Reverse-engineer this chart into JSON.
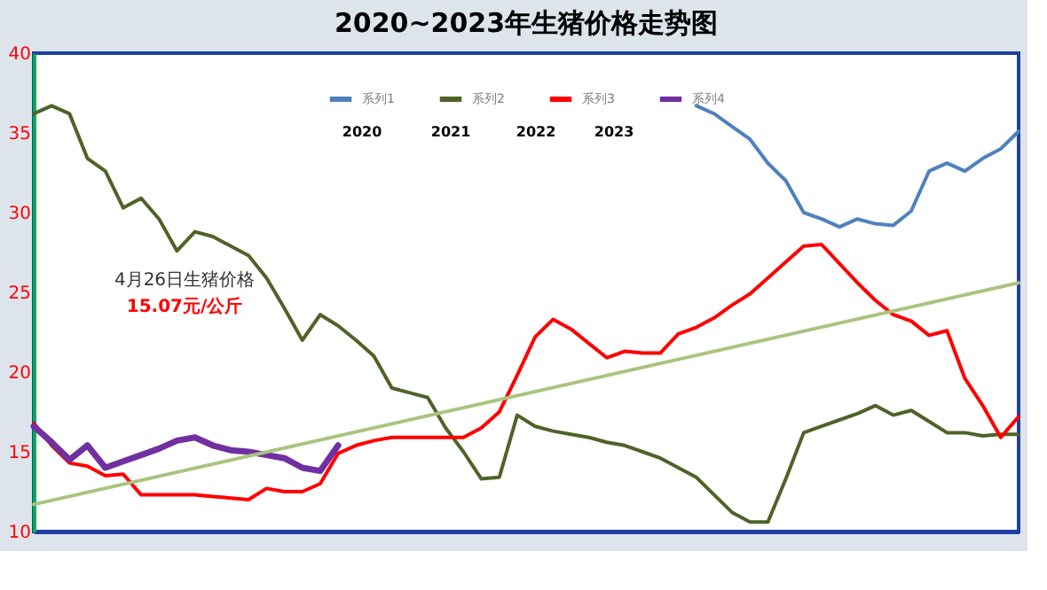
{
  "chart_data": {
    "type": "line",
    "title": "2020~2023年生猪价格走势图",
    "categories": [
      null,
      null,
      null,
      null,
      null,
      null,
      null,
      null,
      null,
      null,
      null,
      null,
      null,
      null,
      null,
      null,
      null,
      null,
      null,
      null,
      null,
      null,
      null,
      null,
      null,
      null,
      null,
      null,
      null,
      null,
      null,
      null,
      null,
      null,
      null,
      null,
      null,
      null,
      null,
      null,
      null,
      null,
      null,
      null,
      null,
      null,
      null,
      null,
      null,
      null,
      null,
      null,
      null,
      null,
      null,
      null
    ],
    "ylim": [
      10,
      40
    ],
    "yticks": [
      10,
      15,
      20,
      25,
      30,
      35,
      40
    ],
    "tick_labels": "y",
    "grid": false,
    "legend": "top",
    "marker": "none",
    "line_style": "solid",
    "annotations": [
      "2020",
      "2021",
      "2022",
      "2023",
      "4月26日生猪价格",
      "15.07元/公斤"
    ],
    "series": [
      {
        "name": "系列1",
        "color": "#4f81bd",
        "values": [
          null,
          null,
          null,
          null,
          null,
          null,
          null,
          null,
          null,
          null,
          null,
          null,
          null,
          null,
          null,
          null,
          null,
          null,
          null,
          null,
          null,
          null,
          null,
          null,
          null,
          null,
          null,
          null,
          null,
          null,
          null,
          null,
          null,
          null,
          null,
          null,
          null,
          36.7,
          36.2,
          35.4,
          34.6,
          33.1,
          32.0,
          30.0,
          29.6,
          29.1,
          29.6,
          29.3,
          29.2,
          30.1,
          32.6,
          33.1,
          32.6,
          33.4,
          34.0,
          35.1
        ]
      },
      {
        "name": "系列2",
        "color": "#4f6228",
        "values": [
          36.2,
          36.7,
          36.2,
          33.4,
          32.6,
          30.3,
          30.9,
          29.6,
          27.6,
          28.8,
          28.5,
          27.9,
          27.3,
          25.9,
          24.0,
          22.0,
          23.6,
          22.9,
          22.0,
          21.0,
          19.0,
          18.7,
          18.4,
          16.5,
          15.0,
          13.3,
          13.4,
          17.3,
          16.6,
          16.3,
          16.1,
          15.9,
          15.6,
          15.4,
          15.0,
          14.6,
          14.0,
          13.4,
          12.3,
          11.2,
          10.6,
          10.6,
          13.3,
          16.2,
          16.6,
          17.0,
          17.4,
          17.9,
          17.3,
          17.6,
          16.9,
          16.2,
          16.2,
          16.0,
          16.1,
          16.1
        ]
      },
      {
        "name": "系列3",
        "color": "#ff0000",
        "values": [
          16.8,
          15.4,
          14.3,
          14.1,
          13.5,
          13.6,
          12.3,
          12.3,
          12.3,
          12.3,
          12.2,
          12.1,
          12.0,
          12.7,
          12.5,
          12.5,
          13.0,
          14.9,
          15.4,
          15.7,
          15.9,
          15.9,
          15.9,
          15.9,
          15.9,
          16.5,
          17.5,
          19.8,
          22.2,
          23.3,
          22.7,
          21.8,
          20.9,
          21.3,
          21.2,
          21.2,
          22.4,
          22.8,
          23.4,
          24.2,
          24.9,
          25.9,
          26.9,
          27.9,
          28.0,
          26.8,
          25.6,
          24.5,
          23.6,
          23.2,
          22.3,
          22.6,
          19.6,
          17.9,
          15.9,
          17.2
        ]
      },
      {
        "name": "系列4",
        "color": "#7030a0",
        "values": [
          16.6,
          15.6,
          14.5,
          15.4,
          14.0,
          14.4,
          14.8,
          15.2,
          15.7,
          15.9,
          15.4,
          15.1,
          15.0,
          14.8,
          14.6,
          14.0,
          13.8,
          15.4,
          null,
          null,
          null,
          null,
          null,
          null,
          null,
          null,
          null,
          null,
          null,
          null,
          null,
          null,
          null,
          null,
          null,
          null,
          null,
          null,
          null,
          null,
          null,
          null,
          null,
          null,
          null,
          null,
          null,
          null,
          null,
          null,
          null,
          null,
          null,
          null,
          null,
          null
        ]
      },
      {
        "color": "#a9c47f",
        "values": [
          11.7,
          null,
          null,
          null,
          null,
          null,
          null,
          null,
          null,
          null,
          null,
          null,
          null,
          null,
          null,
          null,
          null,
          null,
          null,
          null,
          null,
          null,
          null,
          null,
          null,
          null,
          null,
          null,
          null,
          null,
          null,
          null,
          null,
          null,
          null,
          null,
          null,
          null,
          null,
          null,
          null,
          null,
          null,
          null,
          null,
          null,
          null,
          null,
          null,
          null,
          null,
          null,
          null,
          null,
          null,
          25.6
        ]
      }
    ]
  }
}
